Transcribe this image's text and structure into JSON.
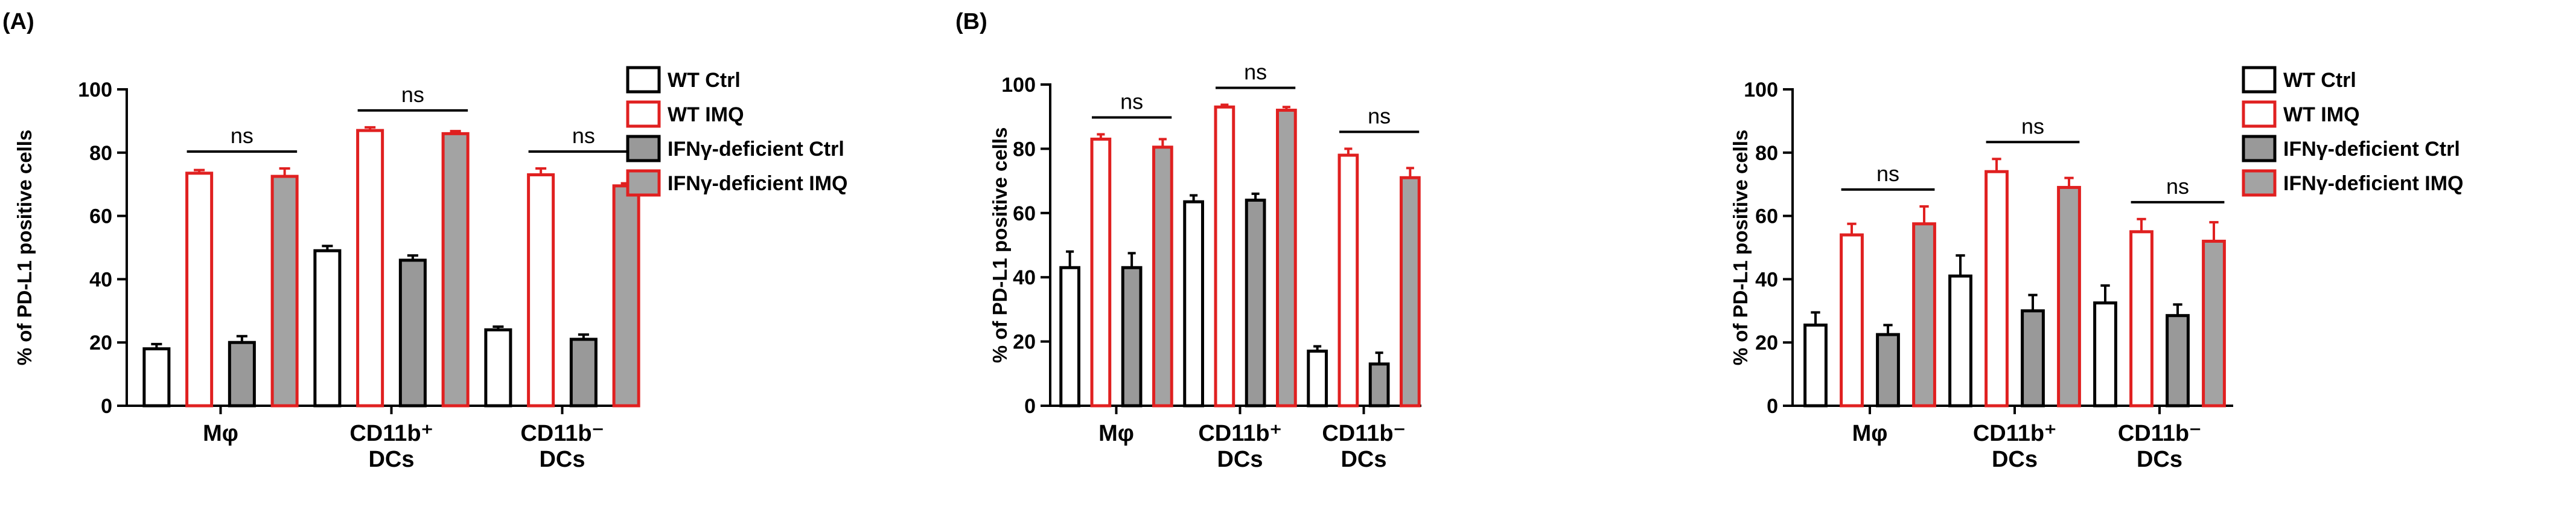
{
  "panel_labels": [
    "(A)",
    "(B)"
  ],
  "colors": {
    "axis": "#000000",
    "wt_ctrl_fill": "#ffffff",
    "wt_ctrl_edge": "#000000",
    "wt_imq_fill": "#ffffff",
    "wt_imq_edge": "#e02020",
    "ifng_ctrl_fill": "#999999",
    "ifng_ctrl_edge": "#000000",
    "ifng_imq_fill": "#a3a3a3",
    "ifng_imq_edge": "#e02020"
  },
  "chart_data": [
    {
      "type": "bar",
      "title": "",
      "xlabel": "",
      "ylabel": "% of PD-L1 positive cells",
      "ylim": [
        0,
        100
      ],
      "yticks": [
        "0",
        "20",
        "40",
        "60",
        "80",
        "100"
      ],
      "categories": [
        [
          "Mφ"
        ],
        [
          "CD11b⁺",
          "DCs"
        ],
        [
          "CD11b⁻",
          "DCs"
        ]
      ],
      "series": [
        {
          "name": "WT Ctrl",
          "values": [
            18,
            49,
            24
          ],
          "errors": [
            1.5,
            1.5,
            1
          ]
        },
        {
          "name": "WT IMQ",
          "values": [
            73.5,
            87,
            73
          ],
          "errors": [
            1,
            1,
            2
          ]
        },
        {
          "name": "IFNγ-deficient Ctrl",
          "values": [
            20,
            46,
            21
          ],
          "errors": [
            2,
            1.5,
            1.5
          ]
        },
        {
          "name": "IFNγ-deficient IMQ",
          "values": [
            72.5,
            86,
            69.5
          ],
          "errors": [
            2.5,
            0.8,
            0.8
          ]
        }
      ],
      "annotations": [
        "ns",
        "ns",
        "ns"
      ],
      "legend": [
        "WT Ctrl",
        "WT IMQ",
        "IFNγ-deficient Ctrl",
        "IFNγ-deficient IMQ"
      ],
      "legend_position": "right"
    },
    {
      "type": "bar",
      "title": "",
      "xlabel": "",
      "ylabel": "% of PD-L1 positive cells",
      "ylim": [
        0,
        100
      ],
      "yticks": [
        "0",
        "20",
        "40",
        "60",
        "80",
        "100"
      ],
      "categories": [
        [
          "Mφ"
        ],
        [
          "CD11b⁺",
          "DCs"
        ],
        [
          "CD11b⁻",
          "DCs"
        ]
      ],
      "series": [
        {
          "name": "WT Ctrl",
          "values": [
            43,
            63.5,
            17
          ],
          "errors": [
            5,
            2,
            1.5
          ]
        },
        {
          "name": "WT IMQ",
          "values": [
            83,
            93,
            78
          ],
          "errors": [
            1.5,
            0.7,
            2
          ]
        },
        {
          "name": "IFNγ-deficient Ctrl",
          "values": [
            43,
            64,
            13
          ],
          "errors": [
            4.5,
            2,
            3.5
          ]
        },
        {
          "name": "IFNγ-deficient IMQ",
          "values": [
            80.5,
            92,
            71
          ],
          "errors": [
            2.5,
            1,
            3
          ]
        }
      ],
      "annotations": [
        "ns",
        "ns",
        "ns"
      ],
      "legend": [],
      "legend_position": "none"
    },
    {
      "type": "bar",
      "title": "",
      "xlabel": "",
      "ylabel": "% of PD-L1 positive cells",
      "ylim": [
        0,
        100
      ],
      "yticks": [
        "0",
        "20",
        "40",
        "60",
        "80",
        "100"
      ],
      "categories": [
        [
          "Mφ"
        ],
        [
          "CD11b⁺",
          "DCs"
        ],
        [
          "CD11b⁻",
          "DCs"
        ]
      ],
      "series": [
        {
          "name": "WT Ctrl",
          "values": [
            25.5,
            41,
            32.5
          ],
          "errors": [
            4,
            6.5,
            5.5
          ]
        },
        {
          "name": "WT IMQ",
          "values": [
            54,
            74,
            55
          ],
          "errors": [
            3.5,
            4,
            4
          ]
        },
        {
          "name": "IFNγ-deficient Ctrl",
          "values": [
            22.5,
            30,
            28.5
          ],
          "errors": [
            3,
            5,
            3.5
          ]
        },
        {
          "name": "IFNγ-deficient IMQ",
          "values": [
            57.5,
            69,
            52
          ],
          "errors": [
            5.5,
            3,
            6
          ]
        }
      ],
      "annotations": [
        "ns",
        "ns",
        "ns"
      ],
      "legend": [
        "WT Ctrl",
        "WT IMQ",
        "IFNγ-deficient Ctrl",
        "IFNγ-deficient IMQ"
      ],
      "legend_position": "right"
    }
  ]
}
